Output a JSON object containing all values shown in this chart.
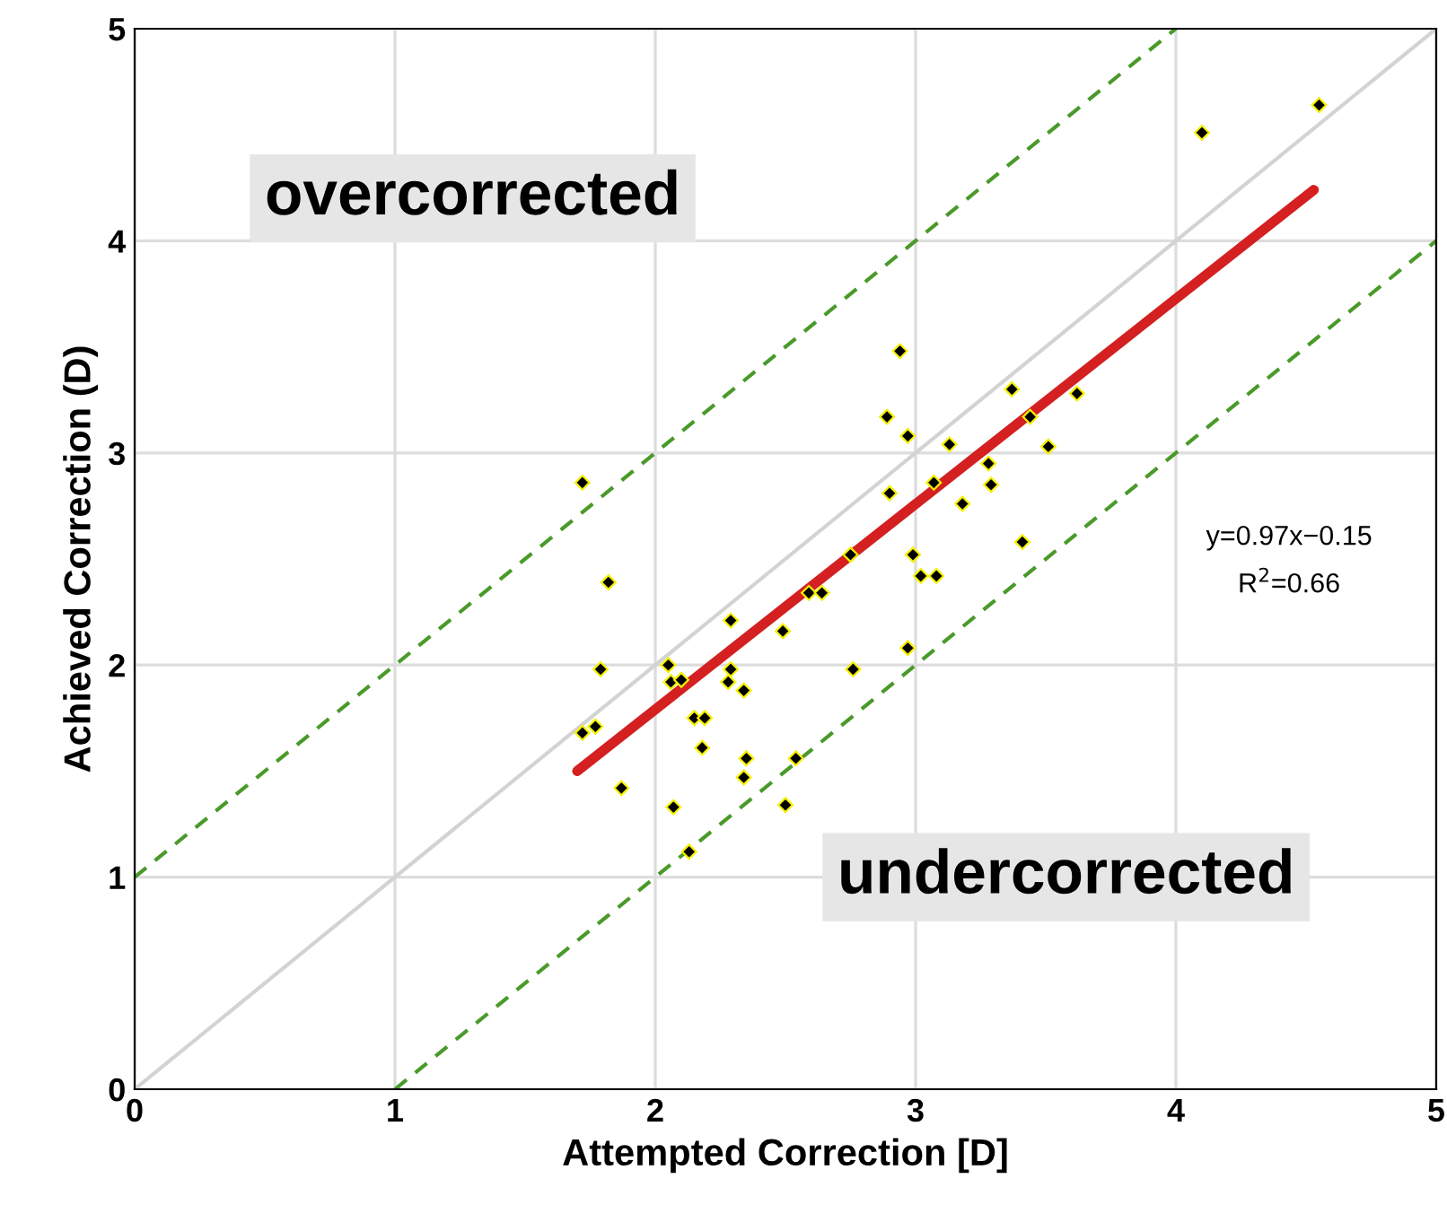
{
  "chart_data": {
    "type": "scatter",
    "xlabel": "Attempted Correction [D]",
    "ylabel": "Achieved Correction (D)",
    "xlim": [
      0,
      5
    ],
    "ylim": [
      0,
      5
    ],
    "xticks": [
      0,
      1,
      2,
      3,
      4,
      5
    ],
    "yticks": [
      0,
      1,
      2,
      3,
      4,
      5
    ],
    "grid": true,
    "annotations": [
      "overcorrected",
      "undercorrected",
      "y=0.97x−0.15",
      "R$^{2}$=0.66"
    ],
    "series": [
      {
        "type": "line",
        "color": "#d3d3d3",
        "line_style": "solid",
        "x": [
          0,
          5
        ],
        "values": [
          0,
          5
        ]
      },
      {
        "type": "line",
        "color": "#4a9a2a",
        "line_style": "dashed",
        "x": [
          0,
          4
        ],
        "values": [
          1,
          5
        ]
      },
      {
        "type": "line",
        "color": "#4a9a2a",
        "line_style": "dashed",
        "x": [
          1,
          5
        ],
        "values": [
          0,
          4
        ]
      },
      {
        "marker": "diamond",
        "color": "#000000",
        "x": [
          1.72,
          1.82,
          1.79,
          1.72,
          1.77,
          1.87,
          2.05,
          2.06,
          2.1,
          2.07,
          2.13,
          2.15,
          2.19,
          2.18,
          2.29,
          2.29,
          2.28,
          2.34,
          2.35,
          2.34,
          2.49,
          2.5,
          2.54,
          2.59,
          2.64,
          2.76,
          2.75,
          2.9,
          2.89,
          2.94,
          2.97,
          2.97,
          2.99,
          3.02,
          3.08,
          3.07,
          3.13,
          3.18,
          3.28,
          3.29,
          3.37,
          3.41,
          3.44,
          3.51,
          3.62,
          4.1,
          4.55
        ],
        "values": [
          2.86,
          2.39,
          1.98,
          1.68,
          1.71,
          1.42,
          2.0,
          1.92,
          1.93,
          1.33,
          1.12,
          1.75,
          1.75,
          1.61,
          2.21,
          1.98,
          1.92,
          1.88,
          1.56,
          1.47,
          2.16,
          1.34,
          1.56,
          2.34,
          2.34,
          1.98,
          2.52,
          2.81,
          3.17,
          3.48,
          3.08,
          2.08,
          2.52,
          2.42,
          2.42,
          2.86,
          3.04,
          2.76,
          2.95,
          2.85,
          3.3,
          2.58,
          3.17,
          3.03,
          3.28,
          4.51,
          4.64
        ]
      },
      {
        "type": "line",
        "color": "#d42020",
        "line_style": "solid",
        "x": [
          1.7,
          4.53
        ],
        "values": [
          1.5,
          4.24
        ]
      }
    ]
  }
}
